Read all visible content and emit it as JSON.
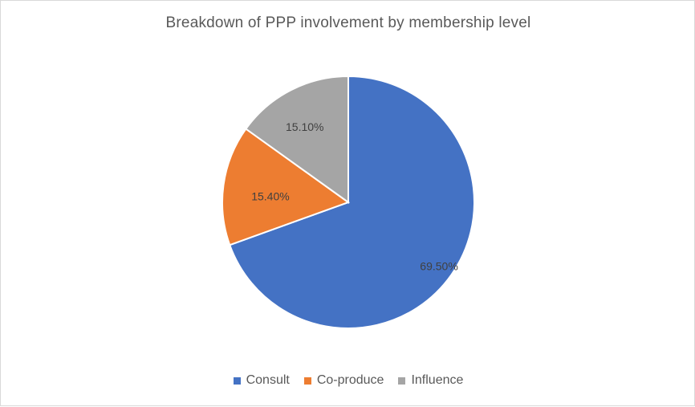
{
  "chart_data": {
    "type": "pie",
    "title": "Breakdown of PPP involvement by membership level",
    "categories": [
      "Consult",
      "Co-produce",
      "Influence"
    ],
    "values": [
      69.5,
      15.4,
      15.1
    ],
    "data_labels": [
      "69.50%",
      "15.40%",
      "15.10%"
    ],
    "colors": [
      "#4472C4",
      "#ED7D31",
      "#A5A5A5"
    ],
    "legend_position": "bottom",
    "start_angle_deg": 0,
    "direction": "clockwise"
  }
}
